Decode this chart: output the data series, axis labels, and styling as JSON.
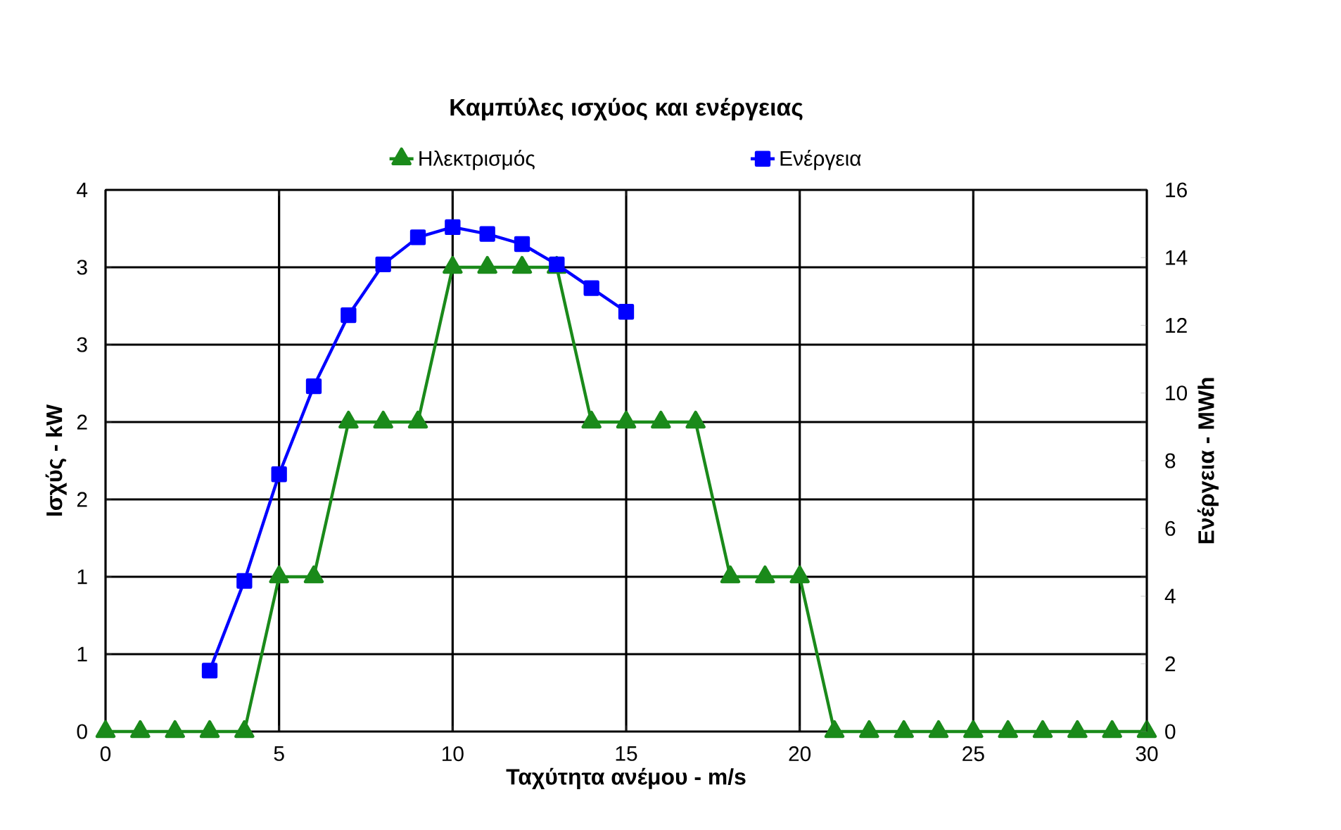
{
  "chart_data": {
    "type": "line",
    "title": "Καμπύλες ισχύος και ενέργειας",
    "xlabel": "Ταχύτητα ανέμου - m/s",
    "ylabel": "Ισχύς - kW",
    "y2label": "Ενέργεια - MWh",
    "x": [
      0,
      1,
      2,
      3,
      4,
      5,
      6,
      7,
      8,
      9,
      10,
      11,
      12,
      13,
      14,
      15,
      16,
      17,
      18,
      19,
      20,
      21,
      22,
      23,
      24,
      25,
      26,
      27,
      28,
      29,
      30
    ],
    "series": [
      {
        "name": "Ηλεκτρισμός",
        "color": "#1a8a1a",
        "marker": "triangle",
        "axis": "y",
        "values": [
          0,
          0,
          0,
          0,
          0,
          1,
          1,
          2,
          2,
          2,
          3,
          3,
          3,
          3,
          2,
          2,
          2,
          2,
          1,
          1,
          1,
          0,
          0,
          0,
          0,
          0,
          0,
          0,
          0,
          0,
          0
        ]
      },
      {
        "name": "Ενέργεια",
        "color": "#0000ff",
        "marker": "square",
        "axis": "y2",
        "values": [
          null,
          null,
          null,
          1.8,
          4.45,
          7.6,
          10.2,
          12.3,
          13.8,
          14.6,
          14.9,
          14.7,
          14.4,
          13.8,
          13.1,
          12.4,
          null,
          null,
          null,
          null,
          null,
          null,
          null,
          null,
          null,
          null,
          null,
          null,
          null,
          null,
          null
        ]
      }
    ],
    "xlim": [
      0,
      30
    ],
    "xticks": [
      0,
      5,
      10,
      15,
      20,
      25,
      30
    ],
    "ylim": [
      0,
      3.5
    ],
    "yticks": [
      0,
      {
        "value": 0.5,
        "label": "1"
      },
      1,
      {
        "value": 1.5,
        "label": "2"
      },
      2,
      {
        "value": 2.5,
        "label": "3"
      },
      3,
      {
        "value": 3.5,
        "label": "4"
      }
    ],
    "y2lim": [
      0,
      16
    ],
    "y2ticks": [
      0,
      2,
      4,
      6,
      8,
      10,
      12,
      14,
      16
    ],
    "grid": true,
    "legend": "top",
    "line_style": "solid"
  }
}
